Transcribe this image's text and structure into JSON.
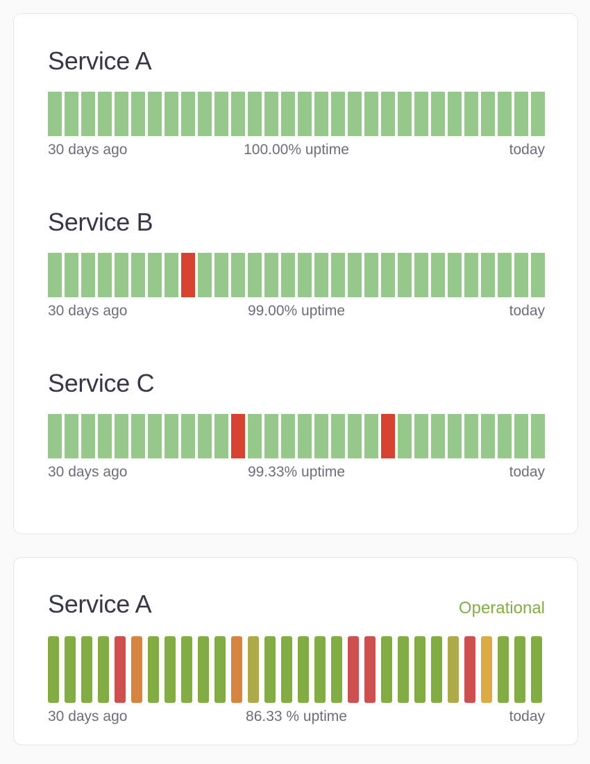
{
  "card1": {
    "services": [
      {
        "title": "Service A",
        "start_label": "30 days ago",
        "uptime_label": "100.00% uptime",
        "end_label": "today",
        "days": [
          "up",
          "up",
          "up",
          "up",
          "up",
          "up",
          "up",
          "up",
          "up",
          "up",
          "up",
          "up",
          "up",
          "up",
          "up",
          "up",
          "up",
          "up",
          "up",
          "up",
          "up",
          "up",
          "up",
          "up",
          "up",
          "up",
          "up",
          "up",
          "up",
          "up"
        ]
      },
      {
        "title": "Service B",
        "start_label": "30 days ago",
        "uptime_label": "99.00% uptime",
        "end_label": "today",
        "days": [
          "up",
          "up",
          "up",
          "up",
          "up",
          "up",
          "up",
          "up",
          "down",
          "up",
          "up",
          "up",
          "up",
          "up",
          "up",
          "up",
          "up",
          "up",
          "up",
          "up",
          "up",
          "up",
          "up",
          "up",
          "up",
          "up",
          "up",
          "up",
          "up",
          "up"
        ]
      },
      {
        "title": "Service C",
        "start_label": "30 days ago",
        "uptime_label": "99.33% uptime",
        "end_label": "today",
        "days": [
          "up",
          "up",
          "up",
          "up",
          "up",
          "up",
          "up",
          "up",
          "up",
          "up",
          "up",
          "down",
          "up",
          "up",
          "up",
          "up",
          "up",
          "up",
          "up",
          "up",
          "down",
          "up",
          "up",
          "up",
          "up",
          "up",
          "up",
          "up",
          "up",
          "up"
        ]
      }
    ],
    "colors": {
      "up": "#96c78b",
      "down": "#d84331"
    }
  },
  "card2": {
    "title": "Service A",
    "status": "Operational",
    "start_label": "30 days ago",
    "uptime_label": "86.33 % uptime",
    "end_label": "today",
    "days": [
      "green",
      "green",
      "green",
      "green",
      "red",
      "orange",
      "green",
      "green",
      "green",
      "green",
      "green",
      "orange",
      "olive",
      "green",
      "green",
      "green",
      "green",
      "green",
      "red",
      "red",
      "green",
      "green",
      "green",
      "green",
      "olive",
      "red",
      "yellow",
      "green",
      "green",
      "green"
    ],
    "colors": {
      "green": "#82ad44",
      "red": "#cf4f4f",
      "orange": "#d68442",
      "olive": "#aeaa47",
      "yellow": "#dcab45"
    }
  }
}
